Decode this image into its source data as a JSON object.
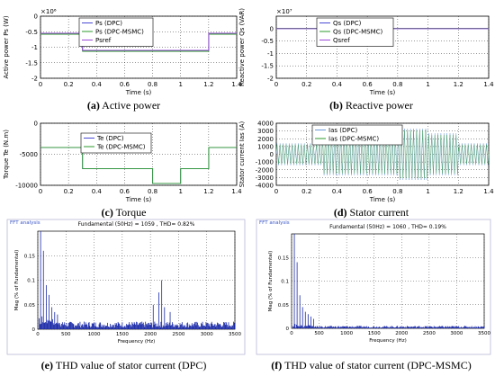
{
  "panels": [
    {
      "caption_letter": "(a)",
      "caption_text": " Active power",
      "exponent": "×10⁶",
      "chart_data": {
        "type": "line",
        "xlabel": "Time (s)",
        "ylabel": "Active power Ps (W)",
        "xlim": [
          0,
          1.4
        ],
        "ylim": [
          -2,
          0
        ],
        "xticks": [
          "0",
          "0.2",
          "0.4",
          "0.6",
          "0.8",
          "1",
          "1.2",
          "1.4"
        ],
        "yticks": [
          "0",
          "-0.5",
          "-1",
          "-1.5",
          "-2"
        ],
        "series": [
          {
            "name": "Ps (DPC)",
            "color": "#4a4ad8",
            "x": [
              0,
              0.3,
              0.3,
              1.2,
              1.2,
              1.4
            ],
            "y": [
              -0.55,
              -0.55,
              -1.1,
              -1.1,
              -0.55,
              -0.55
            ]
          },
          {
            "name": "Ps (DPC-MSMC)",
            "color": "#2e9a2e",
            "x": [
              0,
              0.3,
              0.3,
              1.2,
              1.2,
              1.4
            ],
            "y": [
              -0.58,
              -0.58,
              -1.13,
              -1.13,
              -0.58,
              -0.58
            ]
          },
          {
            "name": "Psref",
            "color": "#9a4ad8",
            "x": [
              0,
              0.3,
              0.3,
              1.2,
              1.2,
              1.4
            ],
            "y": [
              -0.55,
              -0.55,
              -1.1,
              -1.1,
              -0.55,
              -0.55
            ]
          }
        ]
      }
    },
    {
      "caption_letter": "(b)",
      "caption_text": " Reactive power",
      "exponent": "×10⁷",
      "chart_data": {
        "type": "line",
        "xlabel": "Time (s)",
        "ylabel": "Reactive power Qs (VAR)",
        "xlim": [
          0,
          1.4
        ],
        "ylim": [
          -2,
          0.5
        ],
        "xticks": [
          "0",
          "0.2",
          "0.4",
          "0.6",
          "0.8",
          "1",
          "1.2",
          "1.4"
        ],
        "yticks": [
          "0",
          "-0.5",
          "-1",
          "-1.5",
          "-2"
        ],
        "series": [
          {
            "name": "Qs (DPC)",
            "color": "#4a4ad8",
            "x": [
              0,
              1.4
            ],
            "y": [
              0,
              0
            ]
          },
          {
            "name": "Qs (DPC-MSMC)",
            "color": "#2e9a2e",
            "x": [
              0,
              1.4
            ],
            "y": [
              0.01,
              0.01
            ]
          },
          {
            "name": "Qsref",
            "color": "#9a4ad8",
            "x": [
              0,
              1.4
            ],
            "y": [
              0,
              0
            ]
          }
        ]
      }
    },
    {
      "caption_letter": "(c)",
      "caption_text": " Torque",
      "exponent": "",
      "chart_data": {
        "type": "line",
        "xlabel": "Time (s)",
        "ylabel": "Torque Te (N.m)",
        "xlim": [
          0,
          1.4
        ],
        "ylim": [
          -10000,
          0
        ],
        "xticks": [
          "0",
          "0.2",
          "0.4",
          "0.6",
          "0.8",
          "1",
          "1.2",
          "1.4"
        ],
        "yticks": [
          "0",
          "-5000",
          "-10000"
        ],
        "series": [
          {
            "name": "Te (DPC)",
            "color": "#4a4ad8",
            "x": [
              0,
              0.3,
              0.3,
              0.8,
              0.8,
              1.0,
              1.0,
              1.2,
              1.2,
              1.4
            ],
            "y": [
              -3900,
              -3900,
              -7300,
              -7300,
              -9700,
              -9700,
              -7300,
              -7300,
              -3900,
              -3900
            ]
          },
          {
            "name": "Te (DPC-MSMC)",
            "color": "#2e9a2e",
            "x": [
              0,
              0.3,
              0.3,
              0.8,
              0.8,
              1.0,
              1.0,
              1.2,
              1.2,
              1.4
            ],
            "y": [
              -3900,
              -3900,
              -7300,
              -7300,
              -9700,
              -9700,
              -7300,
              -7300,
              -3900,
              -3900
            ]
          }
        ]
      }
    },
    {
      "caption_letter": "(d)",
      "caption_text": " Stator current",
      "exponent": "",
      "chart_data": {
        "type": "line",
        "xlabel": "Time (s)",
        "ylabel": "Stator current Ias (A)",
        "xlim": [
          0,
          1.4
        ],
        "ylim": [
          -4000,
          4000
        ],
        "xticks": [
          "0",
          "0.2",
          "0.4",
          "0.6",
          "0.8",
          "1",
          "1.2",
          "1.4"
        ],
        "yticks": [
          "4000",
          "3000",
          "2000",
          "1000",
          "0",
          "-1000",
          "-2000",
          "-3000",
          "-4000"
        ],
        "series": [
          {
            "name": "Ias (DPC)",
            "color": "#6a9ad8",
            "segments": [
              {
                "x": [
                  0,
                  0.3
                ],
                "amp": 1400
              },
              {
                "x": [
                  0.3,
                  0.8
                ],
                "amp": 2700
              },
              {
                "x": [
                  0.8,
                  1.0
                ],
                "amp": 3300
              },
              {
                "x": [
                  1.0,
                  1.2
                ],
                "amp": 2700
              },
              {
                "x": [
                  1.2,
                  1.4
                ],
                "amp": 1400
              }
            ]
          },
          {
            "name": "Ias (DPC-MSMC)",
            "color": "#2e9a2e",
            "segments": [
              {
                "x": [
                  0,
                  0.3
                ],
                "amp": 1300
              },
              {
                "x": [
                  0.3,
                  0.8
                ],
                "amp": 2600
              },
              {
                "x": [
                  0.8,
                  1.0
                ],
                "amp": 3200
              },
              {
                "x": [
                  1.0,
                  1.2
                ],
                "amp": 2600
              },
              {
                "x": [
                  1.2,
                  1.4
                ],
                "amp": 1300
              }
            ]
          }
        ]
      }
    },
    {
      "caption_letter": "(e)",
      "caption_text": " THD value of stator current (DPC)",
      "window_label": "FFT analysis",
      "fundamental": "Fundamental (50Hz) = 1059 , THD= 0.82%",
      "chart_data": {
        "type": "bar",
        "xlabel": "Frequency (Hz)",
        "ylabel": "Mag (% of Fundamental)",
        "xlim": [
          0,
          3500
        ],
        "ylim": [
          0,
          0.2
        ],
        "xticks": [
          "0",
          "500",
          "1000",
          "1500",
          "2000",
          "2500",
          "3000",
          "3500"
        ],
        "yticks": [
          "0",
          "0.05",
          "0.1",
          "0.15"
        ],
        "peaks": [
          [
            50,
            0.2
          ],
          [
            100,
            0.16
          ],
          [
            150,
            0.09
          ],
          [
            200,
            0.07
          ],
          [
            250,
            0.045
          ],
          [
            300,
            0.035
          ],
          [
            350,
            0.03
          ],
          [
            2050,
            0.05
          ],
          [
            2150,
            0.075
          ],
          [
            2200,
            0.1
          ],
          [
            2250,
            0.045
          ],
          [
            2350,
            0.035
          ]
        ],
        "floor": 0.012
      }
    },
    {
      "caption_letter": "(f)",
      "caption_text": " THD value of stator current (DPC-MSMC)",
      "window_label": "FFT analysis",
      "fundamental": "Fundamental (50Hz) = 1060 , THD= 0.19%",
      "chart_data": {
        "type": "bar",
        "xlabel": "Frequency (Hz)",
        "ylabel": "Mag (% of Fundamental)",
        "xlim": [
          0,
          3500
        ],
        "ylim": [
          0,
          0.2
        ],
        "xticks": [
          "0",
          "500",
          "1000",
          "1500",
          "2000",
          "2500",
          "3000",
          "3500"
        ],
        "yticks": [
          "0",
          "0.05",
          "0.1",
          "0.15"
        ],
        "peaks": [
          [
            50,
            0.2
          ],
          [
            100,
            0.14
          ],
          [
            150,
            0.07
          ],
          [
            200,
            0.045
          ],
          [
            250,
            0.035
          ],
          [
            300,
            0.03
          ],
          [
            350,
            0.025
          ],
          [
            400,
            0.02
          ]
        ],
        "floor": 0.004
      }
    }
  ]
}
